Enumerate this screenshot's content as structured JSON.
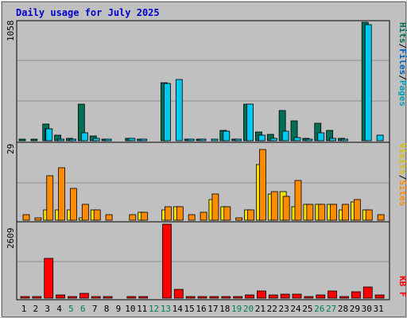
{
  "title": "Daily usage for July 2025",
  "colors": {
    "background": "#c0c0c0",
    "panel": "#c0c0c0",
    "grid": "#8e8e8e",
    "hits": "#006f55",
    "files": "#00c8ee",
    "pages": "#00a0b8",
    "visits": "#f5e000",
    "sites": "#ff8c00",
    "kbf": "#ff0000",
    "weekday_text": "#000000",
    "weekend_text": "#008055",
    "title_text": "#0000cc"
  },
  "legend": {
    "top": [
      {
        "text": "Hits",
        "color": "#006f55"
      },
      {
        "text": "/",
        "color": "#000000"
      },
      {
        "text": "Files",
        "color": "#0060c0"
      },
      {
        "text": "/",
        "color": "#000000"
      },
      {
        "text": "Pages",
        "color": "#00a0b8"
      }
    ],
    "middle": [
      {
        "text": "Visits",
        "color": "#d8c000"
      },
      {
        "text": "/",
        "color": "#000000"
      },
      {
        "text": "Sites",
        "color": "#ff8c00"
      }
    ],
    "bottom": [
      {
        "text": "KB F",
        "color": "#ff0000"
      }
    ]
  },
  "chart_data": [
    {
      "type": "bar",
      "panel": "hits-files-pages",
      "ymax_label": "1058",
      "ylim": [
        0,
        1058
      ],
      "categories": [
        "1",
        "2",
        "3",
        "4",
        "5",
        "6",
        "7",
        "8",
        "9",
        "10",
        "11",
        "12",
        "13",
        "14",
        "15",
        "16",
        "17",
        "18",
        "19",
        "20",
        "21",
        "22",
        "23",
        "24",
        "25",
        "26",
        "27",
        "28",
        "29",
        "30",
        "31"
      ],
      "series": [
        {
          "name": "Hits",
          "values": [
            6,
            6,
            150,
            48,
            24,
            325,
            42,
            6,
            0,
            24,
            12,
            0,
            520,
            0,
            12,
            12,
            0,
            90,
            6,
            330,
            76,
            60,
            270,
            180,
            18,
            156,
            90,
            18,
            0,
            1058,
            0
          ]
        },
        {
          "name": "Files",
          "values": [
            0,
            0,
            110,
            12,
            6,
            72,
            24,
            6,
            0,
            18,
            6,
            0,
            510,
            550,
            6,
            12,
            12,
            84,
            6,
            330,
            48,
            18,
            84,
            30,
            6,
            72,
            18,
            12,
            0,
            1040,
            48
          ]
        },
        {
          "name": "Pages",
          "values": [
            0,
            0,
            105,
            0,
            0,
            0,
            0,
            0,
            0,
            0,
            0,
            0,
            0,
            0,
            0,
            0,
            0,
            0,
            0,
            0,
            0,
            0,
            0,
            0,
            0,
            0,
            0,
            0,
            0,
            0,
            0
          ]
        }
      ]
    },
    {
      "type": "bar",
      "panel": "visits-sites",
      "ymax_label": "29",
      "ylim": [
        0,
        29
      ],
      "categories": [
        "1",
        "2",
        "3",
        "4",
        "5",
        "6",
        "7",
        "8",
        "9",
        "10",
        "11",
        "12",
        "13",
        "14",
        "15",
        "16",
        "17",
        "18",
        "19",
        "20",
        "21",
        "22",
        "23",
        "24",
        "25",
        "26",
        "27",
        "28",
        "29",
        "30",
        "31"
      ],
      "series": [
        {
          "name": "Visits",
          "values": [
            0,
            0,
            4,
            4,
            4,
            1,
            4,
            0,
            0,
            0,
            3,
            0,
            4,
            5,
            0,
            0,
            8,
            5,
            0,
            4,
            21,
            10,
            11,
            5,
            6,
            6,
            6,
            4,
            7,
            4,
            0
          ]
        },
        {
          "name": "Sites",
          "values": [
            2,
            1,
            17,
            20,
            12,
            6,
            4,
            2,
            0,
            2,
            3,
            0,
            5,
            5,
            2,
            3,
            10,
            5,
            1,
            4,
            27,
            11,
            9,
            15,
            6,
            6,
            6,
            6,
            8,
            4,
            2
          ]
        }
      ]
    },
    {
      "type": "bar",
      "panel": "kb-f",
      "ymax_label": "2609",
      "ylim": [
        0,
        2609
      ],
      "categories": [
        "1",
        "2",
        "3",
        "4",
        "5",
        "6",
        "7",
        "8",
        "9",
        "10",
        "11",
        "12",
        "13",
        "14",
        "15",
        "16",
        "17",
        "18",
        "19",
        "20",
        "21",
        "22",
        "23",
        "24",
        "25",
        "26",
        "27",
        "28",
        "29",
        "30",
        "31"
      ],
      "series": [
        {
          "name": "KB F",
          "values": [
            40,
            40,
            1400,
            120,
            60,
            160,
            60,
            20,
            0,
            40,
            40,
            0,
            2609,
            320,
            40,
            40,
            40,
            40,
            40,
            100,
            240,
            100,
            140,
            140,
            20,
            120,
            240,
            60,
            220,
            400,
            120
          ]
        }
      ]
    }
  ],
  "weekend_days": [
    "5",
    "6",
    "12",
    "13",
    "19",
    "20",
    "26",
    "27"
  ]
}
